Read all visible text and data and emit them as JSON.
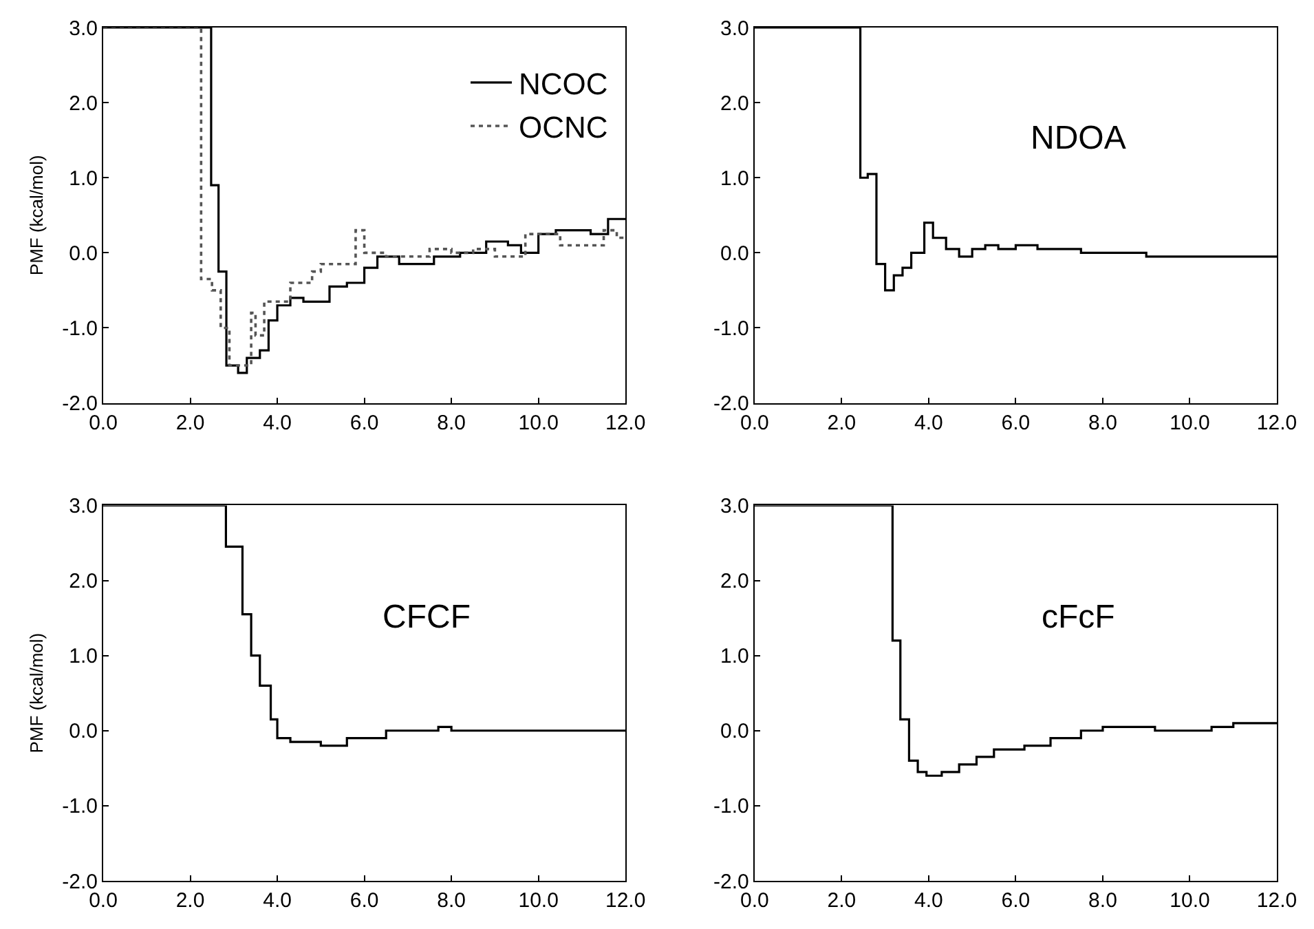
{
  "chart_data": [
    {
      "type": "step",
      "ylabel": "PMF (kcal/mol)",
      "legend": "top right",
      "xlim": [
        0,
        12
      ],
      "ylim": [
        -2,
        3
      ],
      "xticks": [
        {
          "value": 0,
          "label": "0.0"
        },
        {
          "value": 2,
          "label": "2.0"
        },
        {
          "value": 4,
          "label": "4.0"
        },
        {
          "value": 6,
          "label": "6.0"
        },
        {
          "value": 8,
          "label": "8.0"
        },
        {
          "value": 10,
          "label": "10.0"
        },
        {
          "value": 12,
          "label": "12.0"
        }
      ],
      "yticks": [
        {
          "value": -2,
          "label": "-2.0"
        },
        {
          "value": -1,
          "label": "-1.0"
        },
        {
          "value": 0,
          "label": "0.0"
        },
        {
          "value": 1,
          "label": "1.0"
        },
        {
          "value": 2,
          "label": "2.0"
        },
        {
          "value": 3,
          "label": "3.0"
        }
      ],
      "series": [
        {
          "name": "NCOC",
          "color": "#000000",
          "line_style": "solid",
          "x": [
            0,
            2.48,
            2.65,
            2.83,
            3.1,
            3.3,
            3.6,
            3.8,
            4.0,
            4.3,
            4.6,
            5.2,
            5.6,
            6.0,
            6.3,
            6.8,
            7.6,
            8.2,
            8.8,
            9.3,
            9.6,
            10.0,
            10.4,
            11.2,
            11.6,
            12
          ],
          "values": [
            3.0,
            0.9,
            -0.25,
            -1.5,
            -1.6,
            -1.4,
            -1.3,
            -0.9,
            -0.7,
            -0.6,
            -0.65,
            -0.45,
            -0.4,
            -0.2,
            -0.05,
            -0.15,
            -0.05,
            0.0,
            0.15,
            0.1,
            0.0,
            0.25,
            0.3,
            0.25,
            0.45,
            0.45
          ]
        },
        {
          "name": "OCNC",
          "color": "#555555",
          "line_style": "dotted",
          "x": [
            0,
            2.25,
            2.5,
            2.7,
            2.9,
            3.4,
            3.5,
            3.7,
            4.3,
            4.8,
            5.0,
            5.8,
            6.0,
            6.5,
            7.5,
            8.0,
            8.5,
            9.0,
            9.7,
            10.5,
            11.5,
            11.8,
            12
          ],
          "values": [
            3.0,
            -0.35,
            -0.5,
            -1.0,
            -1.5,
            -0.8,
            -1.1,
            -0.65,
            -0.4,
            -0.25,
            -0.15,
            0.3,
            0.0,
            -0.05,
            0.05,
            0.0,
            0.05,
            -0.05,
            0.25,
            0.1,
            0.3,
            0.2,
            0.2
          ]
        }
      ]
    },
    {
      "type": "step",
      "annotations": [
        "NDOA"
      ],
      "xlim": [
        0,
        12
      ],
      "ylim": [
        -2,
        3
      ],
      "xticks": [
        {
          "value": 0,
          "label": "0.0"
        },
        {
          "value": 2,
          "label": "2.0"
        },
        {
          "value": 4,
          "label": "4.0"
        },
        {
          "value": 6,
          "label": "6.0"
        },
        {
          "value": 8,
          "label": "8.0"
        },
        {
          "value": 10,
          "label": "10.0"
        },
        {
          "value": 12,
          "label": "12.0"
        }
      ],
      "yticks": [
        {
          "value": -2,
          "label": "-2.0"
        },
        {
          "value": -1,
          "label": "-1.0"
        },
        {
          "value": 0,
          "label": "0.0"
        },
        {
          "value": 1,
          "label": "1.0"
        },
        {
          "value": 2,
          "label": "2.0"
        },
        {
          "value": 3,
          "label": "3.0"
        }
      ],
      "series": [
        {
          "color": "#000000",
          "line_style": "solid",
          "x": [
            0,
            2.43,
            2.6,
            2.8,
            3.0,
            3.2,
            3.4,
            3.6,
            3.9,
            4.1,
            4.4,
            4.7,
            5.0,
            5.3,
            5.6,
            6.0,
            6.5,
            7.5,
            9.0,
            12
          ],
          "values": [
            3.0,
            1.0,
            1.05,
            -0.15,
            -0.5,
            -0.3,
            -0.2,
            0.0,
            0.4,
            0.2,
            0.05,
            -0.05,
            0.05,
            0.1,
            0.05,
            0.1,
            0.05,
            0.0,
            -0.05,
            -0.05
          ]
        }
      ]
    },
    {
      "type": "step",
      "ylabel": "PMF (kcal/mol)",
      "annotations": [
        "CFCF"
      ],
      "xlim": [
        0,
        12
      ],
      "ylim": [
        -2,
        3
      ],
      "xticks": [
        {
          "value": 0,
          "label": "0.0"
        },
        {
          "value": 2,
          "label": "2.0"
        },
        {
          "value": 4,
          "label": "4.0"
        },
        {
          "value": 6,
          "label": "6.0"
        },
        {
          "value": 8,
          "label": "8.0"
        },
        {
          "value": 10,
          "label": "10.0"
        },
        {
          "value": 12,
          "label": "12.0"
        }
      ],
      "yticks": [
        {
          "value": -2,
          "label": "-2.0"
        },
        {
          "value": -1,
          "label": "-1.0"
        },
        {
          "value": 0,
          "label": "0.0"
        },
        {
          "value": 1,
          "label": "1.0"
        },
        {
          "value": 2,
          "label": "2.0"
        },
        {
          "value": 3,
          "label": "3.0"
        }
      ],
      "series": [
        {
          "color": "#000000",
          "line_style": "solid",
          "x": [
            0,
            2.82,
            3.2,
            3.4,
            3.6,
            3.85,
            4.0,
            4.3,
            5.0,
            5.6,
            6.5,
            7.7,
            8.0,
            12
          ],
          "values": [
            3.0,
            2.45,
            1.55,
            1.0,
            0.6,
            0.15,
            -0.1,
            -0.15,
            -0.2,
            -0.1,
            0.0,
            0.05,
            0.0,
            0.0
          ]
        }
      ]
    },
    {
      "type": "step",
      "annotations": [
        "cFcF"
      ],
      "xlim": [
        0,
        12
      ],
      "ylim": [
        -2,
        3
      ],
      "xticks": [
        {
          "value": 0,
          "label": "0.0"
        },
        {
          "value": 2,
          "label": "2.0"
        },
        {
          "value": 4,
          "label": "4.0"
        },
        {
          "value": 6,
          "label": "6.0"
        },
        {
          "value": 8,
          "label": "8.0"
        },
        {
          "value": 10,
          "label": "10.0"
        },
        {
          "value": 12,
          "label": "12.0"
        }
      ],
      "yticks": [
        {
          "value": -2,
          "label": "-2.0"
        },
        {
          "value": -1,
          "label": "-1.0"
        },
        {
          "value": 0,
          "label": "0.0"
        },
        {
          "value": 1,
          "label": "1.0"
        },
        {
          "value": 2,
          "label": "2.0"
        },
        {
          "value": 3,
          "label": "3.0"
        }
      ],
      "series": [
        {
          "color": "#000000",
          "line_style": "solid",
          "x": [
            0,
            3.17,
            3.35,
            3.55,
            3.75,
            3.95,
            4.3,
            4.7,
            5.1,
            5.5,
            6.2,
            6.8,
            7.5,
            8.0,
            9.2,
            10.5,
            11.0,
            12
          ],
          "values": [
            3.0,
            1.2,
            0.15,
            -0.4,
            -0.55,
            -0.6,
            -0.55,
            -0.45,
            -0.35,
            -0.25,
            -0.2,
            -0.1,
            0.0,
            0.05,
            0.0,
            0.05,
            0.1,
            0.1
          ]
        }
      ]
    }
  ]
}
